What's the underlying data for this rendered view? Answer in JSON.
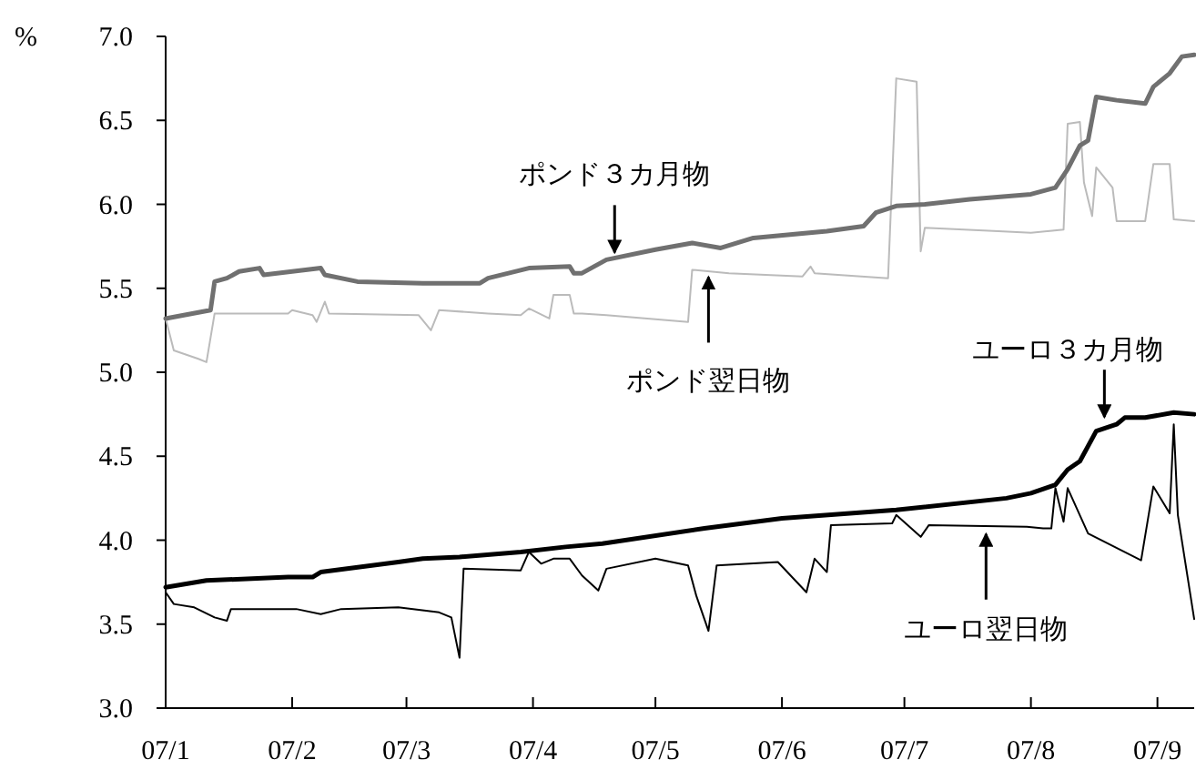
{
  "chart_data": {
    "type": "line",
    "ylabel": "%",
    "xlim": [
      "--01-01",
      "--09-10"
    ],
    "xticks": [
      {
        "value": "--01-01",
        "label": "07/1"
      },
      {
        "value": "--02-01",
        "label": "07/2"
      },
      {
        "value": "--03-01",
        "label": "07/3"
      },
      {
        "value": "--04-01",
        "label": "07/4"
      },
      {
        "value": "--05-01",
        "label": "07/5"
      },
      {
        "value": "--06-01",
        "label": "07/6"
      },
      {
        "value": "--07-01",
        "label": "07/7"
      },
      {
        "value": "--08-01",
        "label": "07/8"
      },
      {
        "value": "--09-01",
        "label": "07/9"
      }
    ],
    "ylim": [
      3.0,
      7.0
    ],
    "yticks": [
      {
        "value": 3.0,
        "label": "3.0"
      },
      {
        "value": 3.5,
        "label": "3.5"
      },
      {
        "value": 4.0,
        "label": "4.0"
      },
      {
        "value": 4.5,
        "label": "4.5"
      },
      {
        "value": 5.0,
        "label": "5.0"
      },
      {
        "value": 5.5,
        "label": "5.5"
      },
      {
        "value": 6.0,
        "label": "6.0"
      },
      {
        "value": 6.5,
        "label": "6.5"
      },
      {
        "value": 7.0,
        "label": "7.0"
      }
    ],
    "grid": false,
    "marker": "none",
    "line_style": "solid",
    "series": [
      {
        "color": "#bbbbbb",
        "x": [
          "--01-01",
          "--01-03",
          "--01-09",
          "--01-11",
          "--01-13",
          "--01-31",
          "--02-01",
          "--02-06",
          "--02-07",
          "--02-09",
          "--02-10",
          "--03-04",
          "--03-07",
          "--03-09",
          "--03-21",
          "--03-29",
          "--03-31",
          "--04-05",
          "--04-06",
          "--04-10",
          "--04-11",
          "--04-13",
          "--04-19",
          "--05-09",
          "--05-10",
          "--05-19",
          "--06-06",
          "--06-08",
          "--06-09",
          "--06-27",
          "--06-29",
          "--07-04",
          "--07-05",
          "--07-06",
          "--07-24",
          "--08-01",
          "--08-09",
          "--08-10",
          "--08-13",
          "--08-14",
          "--08-16",
          "--08-17",
          "--08-21",
          "--08-22",
          "--08-29",
          "--08-31",
          "--09-04",
          "--09-05",
          "--09-10"
        ],
        "values": [
          5.32,
          5.13,
          5.08,
          5.06,
          5.35,
          5.35,
          5.37,
          5.34,
          5.3,
          5.42,
          5.35,
          5.34,
          5.25,
          5.37,
          5.35,
          5.34,
          5.38,
          5.32,
          5.46,
          5.46,
          5.35,
          5.35,
          5.34,
          5.3,
          5.61,
          5.59,
          5.57,
          5.63,
          5.59,
          5.56,
          6.75,
          6.73,
          5.72,
          5.86,
          5.84,
          5.83,
          5.85,
          6.48,
          6.49,
          6.13,
          5.93,
          6.22,
          6.1,
          5.9,
          5.9,
          6.24,
          6.24,
          5.91,
          5.9
        ]
      },
      {
        "color": "#707070",
        "x": [
          "--01-01",
          "--01-12",
          "--01-13",
          "--01-16",
          "--01-19",
          "--01-24",
          "--01-25",
          "--02-08",
          "--02-09",
          "--02-17",
          "--03-05",
          "--03-19",
          "--03-21",
          "--03-31",
          "--04-10",
          "--04-11",
          "--04-13",
          "--04-19",
          "--05-01",
          "--05-10",
          "--05-17",
          "--05-25",
          "--06-12",
          "--06-21",
          "--06-24",
          "--06-29",
          "--07-06",
          "--07-17",
          "--08-01",
          "--08-07",
          "--08-10",
          "--08-13",
          "--08-15",
          "--08-17",
          "--08-22",
          "--08-29",
          "--08-31",
          "--09-04",
          "--09-07",
          "--09-10"
        ],
        "values": [
          5.32,
          5.37,
          5.54,
          5.56,
          5.6,
          5.62,
          5.58,
          5.62,
          5.58,
          5.54,
          5.53,
          5.53,
          5.56,
          5.62,
          5.63,
          5.59,
          5.59,
          5.67,
          5.73,
          5.77,
          5.74,
          5.8,
          5.84,
          5.87,
          5.95,
          5.99,
          6.0,
          6.03,
          6.06,
          6.1,
          6.21,
          6.35,
          6.38,
          6.64,
          6.62,
          6.6,
          6.7,
          6.78,
          6.88,
          6.89
        ]
      },
      {
        "color": "#000000",
        "x": [
          "--01-01",
          "--01-03",
          "--01-08",
          "--01-13",
          "--01-16",
          "--01-17",
          "--02-02",
          "--02-08",
          "--02-13",
          "--02-27",
          "--03-09",
          "--03-12",
          "--03-14",
          "--03-15",
          "--03-29",
          "--03-31",
          "--04-03",
          "--04-06",
          "--04-10",
          "--04-13",
          "--04-17",
          "--04-19",
          "--05-01",
          "--05-09",
          "--05-11",
          "--05-14",
          "--05-16",
          "--05-31",
          "--06-07",
          "--06-09",
          "--06-12",
          "--06-13",
          "--06-28",
          "--06-29",
          "--07-05",
          "--07-07",
          "--07-31",
          "--08-04",
          "--08-06",
          "--08-07",
          "--08-09",
          "--08-10",
          "--08-15",
          "--08-28",
          "--08-31",
          "--09-04",
          "--09-05",
          "--09-06",
          "--09-10"
        ],
        "values": [
          3.69,
          3.62,
          3.6,
          3.54,
          3.52,
          3.59,
          3.59,
          3.56,
          3.59,
          3.6,
          3.57,
          3.54,
          3.3,
          3.83,
          3.82,
          3.93,
          3.86,
          3.89,
          3.89,
          3.79,
          3.7,
          3.83,
          3.89,
          3.85,
          3.67,
          3.46,
          3.85,
          3.87,
          3.69,
          3.89,
          3.81,
          4.09,
          4.1,
          4.15,
          4.02,
          4.09,
          4.08,
          4.07,
          4.07,
          4.31,
          4.11,
          4.31,
          4.04,
          3.88,
          4.32,
          4.16,
          4.69,
          4.15,
          3.53
        ]
      },
      {
        "color": "#000000",
        "x": [
          "--01-01",
          "--01-11",
          "--01-31",
          "--02-06",
          "--02-08",
          "--02-27",
          "--03-05",
          "--03-14",
          "--03-29",
          "--04-09",
          "--04-18",
          "--05-13",
          "--06-01",
          "--06-29",
          "--07-26",
          "--08-01",
          "--08-07",
          "--08-10",
          "--08-13",
          "--08-17",
          "--08-22",
          "--08-24",
          "--08-29",
          "--09-05",
          "--09-10"
        ],
        "values": [
          3.72,
          3.76,
          3.78,
          3.78,
          3.81,
          3.87,
          3.89,
          3.9,
          3.93,
          3.96,
          3.98,
          4.07,
          4.13,
          4.18,
          4.25,
          4.28,
          4.33,
          4.42,
          4.47,
          4.65,
          4.69,
          4.73,
          4.73,
          4.76,
          4.75
        ]
      }
    ],
    "annotations": [
      {
        "text": "ポンド３カ月物",
        "x": "--04-21",
        "y": 5.67
      },
      {
        "text": "ポンド翌日物",
        "x": "--05-14",
        "y": 5.61
      },
      {
        "text": "ユーロ３カ月物",
        "x": "--08-19",
        "y": 4.69
      },
      {
        "text": "ユーロ翌日物",
        "x": "--07-21",
        "y": 4.08
      }
    ]
  }
}
